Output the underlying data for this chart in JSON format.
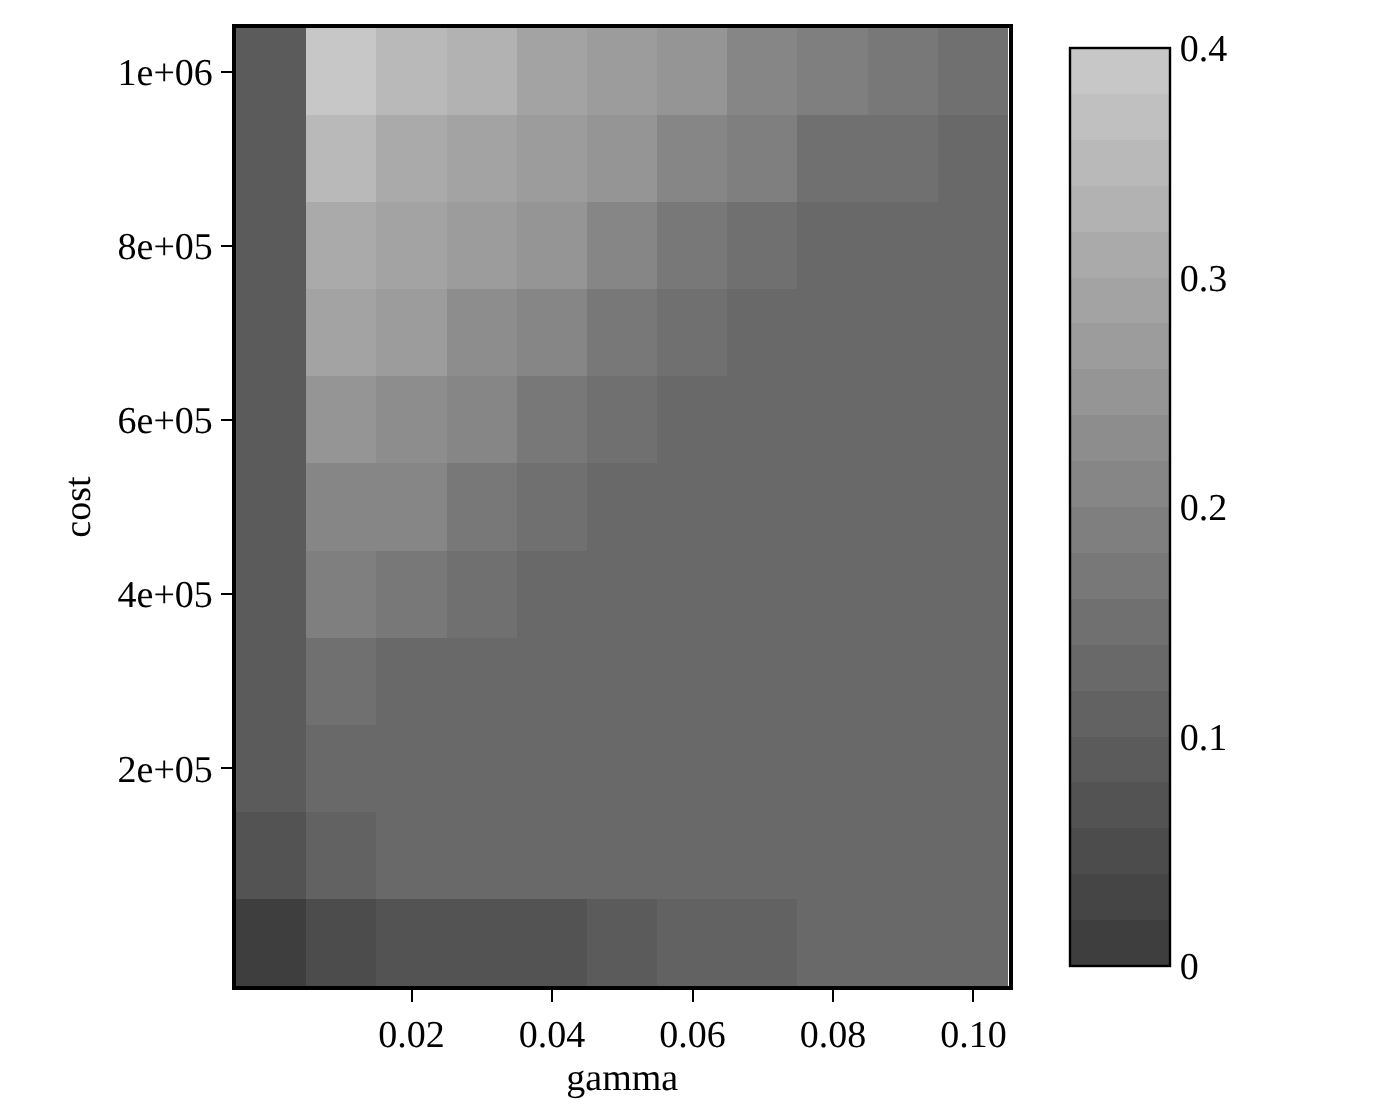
{
  "chart_data": {
    "type": "heatmap",
    "xlabel": "gamma",
    "ylabel": "cost",
    "x": [
      0,
      0.01,
      0.02,
      0.03,
      0.04,
      0.05,
      0.06,
      0.07,
      0.08,
      0.09,
      0.1
    ],
    "y": [
      1000000,
      900000,
      800000,
      700000,
      600000,
      500000,
      400000,
      300000,
      200000,
      100000,
      0
    ],
    "cells": [
      [
        0.09,
        0.38,
        0.35,
        0.33,
        0.3,
        0.27,
        0.25,
        0.22,
        0.19,
        0.17,
        0.14
      ],
      [
        0.09,
        0.35,
        0.32,
        0.3,
        0.27,
        0.24,
        0.22,
        0.19,
        0.16,
        0.14,
        0.13
      ],
      [
        0.09,
        0.32,
        0.29,
        0.26,
        0.24,
        0.21,
        0.18,
        0.16,
        0.13,
        0.13,
        0.13
      ],
      [
        0.09,
        0.29,
        0.26,
        0.23,
        0.21,
        0.18,
        0.15,
        0.13,
        0.13,
        0.13,
        0.13
      ],
      [
        0.09,
        0.25,
        0.23,
        0.2,
        0.17,
        0.15,
        0.13,
        0.13,
        0.13,
        0.13,
        0.13
      ],
      [
        0.09,
        0.22,
        0.2,
        0.17,
        0.14,
        0.13,
        0.13,
        0.13,
        0.13,
        0.13,
        0.13
      ],
      [
        0.09,
        0.19,
        0.17,
        0.14,
        0.13,
        0.13,
        0.13,
        0.13,
        0.13,
        0.13,
        0.13
      ],
      [
        0.09,
        0.16,
        0.13,
        0.13,
        0.13,
        0.13,
        0.13,
        0.13,
        0.13,
        0.13,
        0.13
      ],
      [
        0.09,
        0.13,
        0.13,
        0.13,
        0.13,
        0.13,
        0.13,
        0.13,
        0.13,
        0.13,
        0.13
      ],
      [
        0.06,
        0.11,
        0.12,
        0.12,
        0.12,
        0.12,
        0.12,
        0.13,
        0.13,
        0.13,
        0.13
      ],
      [
        0.01,
        0.05,
        0.06,
        0.07,
        0.08,
        0.09,
        0.1,
        0.11,
        0.12,
        0.13,
        0.13
      ]
    ],
    "xlim": [
      -0.005,
      0.105
    ],
    "ylim": [
      -50000,
      1050000
    ],
    "xticks": [
      0.02,
      0.04,
      0.06,
      0.08,
      {
        "value": 0.1,
        "label": "0.10"
      }
    ],
    "yticks": [
      {
        "value": 200000,
        "label": "2e+05"
      },
      {
        "value": 400000,
        "label": "4e+05"
      },
      {
        "value": 600000,
        "label": "6e+05"
      },
      {
        "value": 800000,
        "label": "8e+05"
      },
      {
        "value": 1000000,
        "label": "1e+06"
      }
    ],
    "clim": [
      0,
      0.4
    ],
    "cticks": [
      0,
      0.1,
      0.2,
      0.3,
      0.4
    ]
  }
}
